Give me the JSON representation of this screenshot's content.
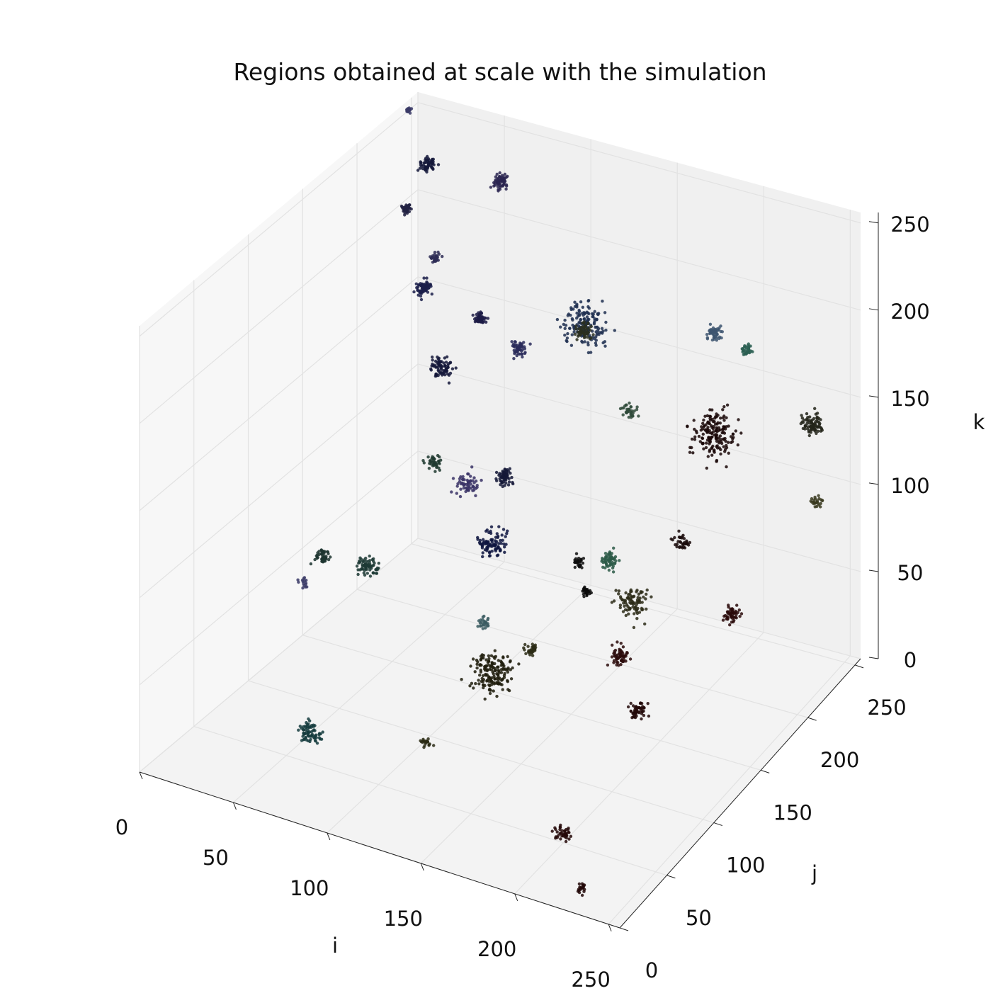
{
  "chart_data": {
    "type": "scatter",
    "projection": "3d",
    "title": "Regions obtained at scale with the simulation",
    "xlabel": "i",
    "ylabel": "j",
    "zlabel": "k",
    "xlim": [
      0,
      256
    ],
    "ylim": [
      0,
      256
    ],
    "zlim": [
      0,
      256
    ],
    "xticks": [
      0,
      50,
      100,
      150,
      200,
      250
    ],
    "yticks": [
      0,
      50,
      100,
      150,
      200,
      250
    ],
    "zticks": [
      0,
      50,
      100,
      150,
      200,
      250
    ],
    "grid": true,
    "legend": "none",
    "note_color": "points colored by region; colors range from dark blue through green/olive to dark red",
    "colors": {
      "pane_left": "#f7f7f7",
      "pane_right": "#f0f0f0",
      "pane_floor": "#f3f3f3",
      "grid": "#e2e2e2"
    },
    "clusters": [
      {
        "i": 8,
        "j": 248,
        "k": 150,
        "n": 70,
        "spread": 3,
        "color": "#1b1f4a"
      },
      {
        "i": 40,
        "j": 250,
        "k": 140,
        "n": 55,
        "spread": 2,
        "color": "#1c1b45"
      },
      {
        "i": 55,
        "j": 245,
        "k": 225,
        "n": 60,
        "spread": 3,
        "color": "#2a2550"
      },
      {
        "i": 5,
        "j": 240,
        "k": 255,
        "n": 20,
        "spread": 1,
        "color": "#3a3a66"
      },
      {
        "i": 205,
        "j": 230,
        "k": 178,
        "n": 35,
        "spread": 2,
        "color": "#2c5f52"
      },
      {
        "i": 180,
        "j": 240,
        "k": 175,
        "n": 50,
        "spread": 3,
        "color": "#3d5570"
      },
      {
        "i": 245,
        "j": 225,
        "k": 150,
        "n": 80,
        "spread": 4,
        "color": "#23241a"
      },
      {
        "i": 250,
        "j": 220,
        "k": 110,
        "n": 25,
        "spread": 2,
        "color": "#3a3a20"
      },
      {
        "i": 118,
        "j": 220,
        "k": 175,
        "n": 160,
        "spread": 8,
        "color": "#1e2f50"
      },
      {
        "i": 230,
        "j": 150,
        "k": 185,
        "n": 170,
        "spread": 8,
        "color": "#1a0808"
      },
      {
        "i": 100,
        "j": 250,
        "k": 150,
        "n": 50,
        "spread": 3,
        "color": "#2a2f1f"
      },
      {
        "i": 80,
        "j": 220,
        "k": 150,
        "n": 55,
        "spread": 3,
        "color": "#2a2c5a"
      },
      {
        "i": 125,
        "j": 250,
        "k": 110,
        "n": 35,
        "spread": 3,
        "color": "#2f4a3a"
      },
      {
        "i": 160,
        "j": 170,
        "k": 80,
        "n": 60,
        "spread": 3,
        "color": "#2d5a48"
      },
      {
        "i": 30,
        "j": 230,
        "k": 120,
        "n": 75,
        "spread": 4,
        "color": "#14183a"
      },
      {
        "i": 60,
        "j": 240,
        "k": 60,
        "n": 60,
        "spread": 3,
        "color": "#141837"
      },
      {
        "i": 0,
        "j": 245,
        "k": 195,
        "n": 40,
        "spread": 2,
        "color": "#222243"
      },
      {
        "i": 10,
        "j": 250,
        "k": 220,
        "n": 55,
        "spread": 3,
        "color": "#14183a"
      },
      {
        "i": 20,
        "j": 240,
        "k": 175,
        "n": 30,
        "spread": 2,
        "color": "#2d2b55"
      },
      {
        "i": 140,
        "j": 175,
        "k": 70,
        "n": 30,
        "spread": 2,
        "color": "#0c0c0c"
      },
      {
        "i": 150,
        "j": 165,
        "k": 62,
        "n": 25,
        "spread": 2,
        "color": "#0a0a0a"
      },
      {
        "i": 185,
        "j": 150,
        "k": 75,
        "n": 90,
        "spread": 6,
        "color": "#2b2a16"
      },
      {
        "i": 250,
        "j": 130,
        "k": 100,
        "n": 50,
        "spread": 3,
        "color": "#2a0a0a"
      },
      {
        "i": 195,
        "j": 180,
        "k": 95,
        "n": 35,
        "spread": 3,
        "color": "#1a0a0a"
      },
      {
        "i": 80,
        "j": 170,
        "k": 100,
        "n": 60,
        "spread": 4,
        "color": "#3a3366"
      },
      {
        "i": 55,
        "j": 180,
        "k": 100,
        "n": 40,
        "spread": 3,
        "color": "#203a30"
      },
      {
        "i": 95,
        "j": 170,
        "k": 70,
        "n": 90,
        "spread": 5,
        "color": "#0e1540"
      },
      {
        "i": 225,
        "j": 60,
        "k": 110,
        "n": 60,
        "spread": 4,
        "color": "#2a0a0a"
      },
      {
        "i": 240,
        "j": 50,
        "k": 90,
        "n": 50,
        "spread": 3,
        "color": "#220808"
      },
      {
        "i": 150,
        "j": 110,
        "k": 60,
        "n": 30,
        "spread": 2,
        "color": "#2a2a14"
      },
      {
        "i": 60,
        "j": 110,
        "k": 80,
        "n": 70,
        "spread": 4,
        "color": "#1d3a35"
      },
      {
        "i": 40,
        "j": 100,
        "k": 85,
        "n": 45,
        "spread": 3,
        "color": "#1d3530"
      },
      {
        "i": 140,
        "j": 90,
        "k": 55,
        "n": 160,
        "spread": 7,
        "color": "#1e1c0c"
      },
      {
        "i": 118,
        "j": 120,
        "k": 60,
        "n": 25,
        "spread": 2,
        "color": "#3a5a60"
      },
      {
        "i": 0,
        "j": 150,
        "k": 30,
        "n": 15,
        "spread": 2,
        "color": "#3a3a66"
      },
      {
        "i": 120,
        "j": 60,
        "k": 25,
        "n": 20,
        "spread": 2,
        "color": "#2a2a14"
      },
      {
        "i": 80,
        "j": 20,
        "k": 40,
        "n": 70,
        "spread": 4,
        "color": "#143b3d"
      },
      {
        "i": 200,
        "j": 50,
        "k": 5,
        "n": 40,
        "spread": 3,
        "color": "#240808"
      },
      {
        "i": 225,
        "j": 20,
        "k": 0,
        "n": 20,
        "spread": 2,
        "color": "#220808"
      }
    ]
  }
}
